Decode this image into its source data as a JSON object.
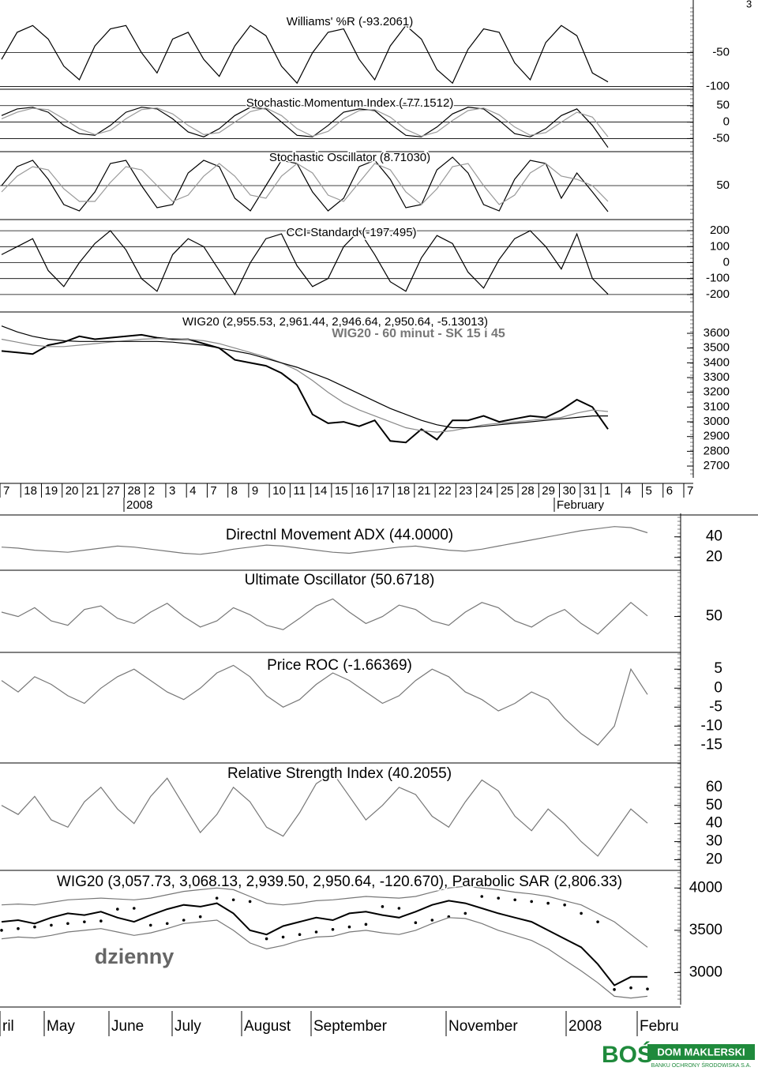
{
  "page_number": "3",
  "intraday_title": "WIG20 - 60 minut - SK 15 i 45",
  "daily_label": "dzienny",
  "logo": {
    "brand": "BOŚ",
    "name": "DOM MAKLERSKI",
    "subtitle": "BANKU OCHRONY ŚRODOWISKA S.A."
  },
  "intraday_axis": {
    "categories": [
      "7",
      "18",
      "19",
      "20",
      "21",
      "27",
      "28",
      "2",
      "3",
      "4",
      "7",
      "8",
      "9",
      "10",
      "11",
      "14",
      "15",
      "16",
      "17",
      "18",
      "21",
      "22",
      "23",
      "24",
      "25",
      "28",
      "29",
      "30",
      "31",
      "1",
      "4",
      "5",
      "6",
      "7"
    ],
    "year": "2008",
    "month": "February"
  },
  "daily_axis": {
    "categories": [
      "ril",
      "May",
      "June",
      "July",
      "August",
      "September",
      "November",
      "2008",
      "Febru"
    ]
  },
  "chart_data": [
    {
      "type": "line",
      "title": "Williams' %R (-93.2061)",
      "ylim": [
        -104,
        16
      ],
      "yticks": [
        -50,
        -100
      ],
      "grid": true,
      "series": [
        {
          "color": "#000",
          "values": [
            -60,
            -20,
            -10,
            -30,
            -70,
            -90,
            -40,
            -15,
            -10,
            -50,
            -80,
            -30,
            -20,
            -60,
            -85,
            -40,
            -10,
            -25,
            -70,
            -95,
            -50,
            -20,
            -15,
            -60,
            -90,
            -40,
            -10,
            -30,
            -75,
            -95,
            -45,
            -15,
            -20,
            -65,
            -90,
            -35,
            -10,
            -25,
            -80,
            -93.2061
          ]
        }
      ]
    },
    {
      "type": "line",
      "title": "Stochastic Momentum Index (-77.1512)",
      "ylim": [
        -85,
        95
      ],
      "yticks": [
        50,
        0,
        -50
      ],
      "grid": true,
      "series": [
        {
          "color": "#000",
          "values": [
            20,
            40,
            45,
            30,
            -10,
            -35,
            -40,
            -10,
            30,
            45,
            40,
            10,
            -30,
            -45,
            -20,
            20,
            45,
            40,
            0,
            -40,
            -45,
            -10,
            30,
            40,
            35,
            -5,
            -40,
            -45,
            -15,
            25,
            45,
            40,
            5,
            -35,
            -45,
            -20,
            20,
            40,
            -10,
            -77.1512
          ]
        },
        {
          "color": "#999",
          "values": [
            10,
            30,
            42,
            38,
            10,
            -20,
            -38,
            -25,
            10,
            38,
            43,
            25,
            -10,
            -38,
            -32,
            0,
            32,
            43,
            20,
            -20,
            -43,
            -28,
            10,
            35,
            38,
            15,
            -22,
            -43,
            -30,
            5,
            35,
            43,
            22,
            -15,
            -40,
            -32,
            0,
            30,
            15,
            -45
          ]
        }
      ]
    },
    {
      "type": "line",
      "title": "Stochastic Oscillator (8.71030)",
      "ylim": [
        0,
        100
      ],
      "yticks": [
        50
      ],
      "grid": true,
      "series": [
        {
          "color": "#000",
          "values": [
            50,
            80,
            90,
            60,
            20,
            10,
            40,
            85,
            90,
            50,
            15,
            20,
            70,
            90,
            80,
            30,
            10,
            50,
            90,
            85,
            40,
            10,
            30,
            80,
            90,
            60,
            15,
            20,
            75,
            95,
            70,
            20,
            10,
            60,
            90,
            85,
            30,
            70,
            40,
            8.7103
          ]
        },
        {
          "color": "#999",
          "values": [
            40,
            65,
            80,
            75,
            45,
            25,
            25,
            55,
            80,
            75,
            50,
            25,
            35,
            65,
            85,
            65,
            35,
            30,
            65,
            85,
            70,
            35,
            25,
            55,
            85,
            75,
            40,
            20,
            45,
            80,
            85,
            50,
            20,
            35,
            70,
            85,
            65,
            60,
            50,
            25
          ]
        }
      ]
    },
    {
      "type": "line",
      "title": "CCI-Standard (-197.495)",
      "ylim": [
        -260,
        250
      ],
      "yticks": [
        200,
        100,
        0,
        -100,
        -200
      ],
      "grid": true,
      "series": [
        {
          "color": "#000",
          "values": [
            50,
            100,
            150,
            -50,
            -150,
            0,
            120,
            200,
            80,
            -100,
            -180,
            50,
            150,
            100,
            -50,
            -200,
            0,
            150,
            180,
            -20,
            -150,
            -100,
            100,
            200,
            50,
            -120,
            -180,
            30,
            170,
            120,
            -60,
            -160,
            20,
            150,
            200,
            100,
            -40,
            180,
            -100,
            -197.495
          ]
        }
      ]
    },
    {
      "type": "line",
      "title": "WIG20 (2,955.53, 2,961.44, 2,946.64, 2,950.64, -5.13013)",
      "ylim": [
        2620,
        3718
      ],
      "yticks": [
        3600,
        3500,
        3400,
        3300,
        3200,
        3100,
        3000,
        2900,
        2800,
        2700
      ],
      "grid": false,
      "series": [
        {
          "color": "#000",
          "width": 2,
          "values": [
            3480,
            3470,
            3460,
            3520,
            3540,
            3580,
            3560,
            3570,
            3580,
            3590,
            3570,
            3560,
            3560,
            3530,
            3500,
            3420,
            3400,
            3380,
            3330,
            3250,
            3050,
            2990,
            3000,
            2970,
            3010,
            2870,
            2860,
            2950,
            2880,
            3010,
            3010,
            3040,
            3000,
            3020,
            3040,
            3030,
            3080,
            3150,
            3100,
            2950.64
          ]
        },
        {
          "color": "#888",
          "values": [
            3560,
            3540,
            3520,
            3510,
            3510,
            3520,
            3530,
            3540,
            3550,
            3560,
            3565,
            3565,
            3560,
            3550,
            3530,
            3500,
            3470,
            3440,
            3400,
            3350,
            3280,
            3200,
            3130,
            3080,
            3040,
            3000,
            2960,
            2940,
            2930,
            2940,
            2960,
            2980,
            2990,
            3000,
            3010,
            3020,
            3030,
            3060,
            3080,
            3070
          ]
        },
        {
          "color": "#000",
          "values": [
            3650,
            3610,
            3580,
            3560,
            3550,
            3545,
            3545,
            3545,
            3545,
            3545,
            3545,
            3540,
            3530,
            3520,
            3500,
            3480,
            3460,
            3430,
            3400,
            3370,
            3330,
            3290,
            3240,
            3190,
            3140,
            3090,
            3050,
            3010,
            2980,
            2960,
            2960,
            2970,
            2980,
            2990,
            3000,
            3010,
            3020,
            3030,
            3040,
            3040
          ]
        }
      ]
    },
    {
      "type": "line",
      "title": "Directnl Movement ADX (44.0000)",
      "ylim": [
        9,
        59
      ],
      "yticks": [
        40,
        20
      ],
      "grid": false,
      "series": [
        {
          "color": "#777",
          "values": [
            30,
            29,
            27,
            26,
            25,
            27,
            29,
            31,
            30,
            28,
            26,
            24,
            23,
            25,
            28,
            30,
            32,
            31,
            29,
            27,
            25,
            24,
            26,
            28,
            30,
            31,
            29,
            27,
            26,
            28,
            31,
            34,
            37,
            40,
            43,
            46,
            48,
            50,
            49,
            44
          ]
        }
      ]
    },
    {
      "type": "line",
      "title": "Ultimate Oscillator (50.6718)",
      "ylim": [
        10,
        100
      ],
      "yticks": [
        50
      ],
      "grid": false,
      "series": [
        {
          "color": "#777",
          "values": [
            55,
            50,
            60,
            45,
            40,
            58,
            62,
            48,
            42,
            55,
            65,
            50,
            38,
            45,
            60,
            52,
            40,
            35,
            48,
            62,
            70,
            55,
            42,
            50,
            63,
            58,
            45,
            40,
            55,
            66,
            60,
            45,
            38,
            50,
            58,
            42,
            30,
            48,
            66,
            50.6718
          ]
        }
      ]
    },
    {
      "type": "line",
      "title": "Price ROC (-1.66369)",
      "ylim": [
        -19.5,
        9
      ],
      "yticks": [
        5,
        0,
        -5,
        -10,
        -15
      ],
      "grid": false,
      "series": [
        {
          "color": "#777",
          "values": [
            2,
            -1,
            3,
            1,
            -2,
            -4,
            0,
            3,
            5,
            2,
            -1,
            -3,
            0,
            4,
            6,
            3,
            -2,
            -5,
            -3,
            1,
            4,
            2,
            -1,
            -4,
            -2,
            2,
            5,
            3,
            -1,
            -3,
            -6,
            -4,
            -1,
            -3,
            -8,
            -12,
            -15,
            -10,
            5,
            -1.66369
          ]
        }
      ]
    },
    {
      "type": "line",
      "title": "Relative Strength Index (40.2055)",
      "ylim": [
        15,
        73
      ],
      "yticks": [
        60,
        50,
        40,
        30,
        20
      ],
      "grid": false,
      "series": [
        {
          "color": "#777",
          "values": [
            50,
            45,
            55,
            42,
            38,
            52,
            60,
            48,
            40,
            55,
            65,
            50,
            35,
            45,
            60,
            52,
            38,
            33,
            46,
            62,
            68,
            55,
            42,
            50,
            60,
            56,
            44,
            38,
            52,
            64,
            58,
            44,
            36,
            48,
            40,
            30,
            22,
            35,
            48,
            40.2055
          ]
        }
      ]
    },
    {
      "type": "line",
      "title": "WIG20 (3,057.73, 3,068.13, 2,939.50, 2,950.64, -120.670), Parabolic SAR (2,806.33)",
      "ylim": [
        2640,
        4180
      ],
      "yticks": [
        4000,
        3500,
        3000
      ],
      "grid": false,
      "series": [
        {
          "color": "#000",
          "width": 2,
          "values": [
            3600,
            3620,
            3580,
            3650,
            3700,
            3680,
            3720,
            3650,
            3600,
            3680,
            3750,
            3800,
            3780,
            3820,
            3700,
            3500,
            3450,
            3550,
            3600,
            3650,
            3620,
            3700,
            3720,
            3680,
            3650,
            3720,
            3800,
            3850,
            3820,
            3760,
            3700,
            3650,
            3600,
            3500,
            3400,
            3300,
            3100,
            2850,
            2950,
            2950.64
          ]
        },
        {
          "color": "#000",
          "style": "dots",
          "values": [
            3500,
            3520,
            3540,
            3560,
            3580,
            3600,
            3610,
            3750,
            3760,
            3560,
            3580,
            3620,
            3660,
            3880,
            3860,
            3840,
            3400,
            3420,
            3450,
            3480,
            3510,
            3540,
            3570,
            3780,
            3760,
            3590,
            3620,
            3660,
            3700,
            3900,
            3880,
            3860,
            3840,
            3820,
            3800,
            3700,
            3600,
            2800,
            2820,
            2806.33
          ]
        },
        {
          "color": "#777",
          "values": [
            3800,
            3810,
            3800,
            3830,
            3860,
            3870,
            3880,
            3870,
            3860,
            3880,
            3920,
            3960,
            3980,
            4000,
            3980,
            3900,
            3820,
            3800,
            3820,
            3850,
            3860,
            3880,
            3900,
            3890,
            3880,
            3900,
            3950,
            4000,
            4020,
            4000,
            3980,
            3950,
            3930,
            3900,
            3850,
            3800,
            3700,
            3600,
            3450,
            3300
          ]
        },
        {
          "color": "#777",
          "values": [
            3400,
            3420,
            3410,
            3440,
            3480,
            3500,
            3520,
            3480,
            3440,
            3470,
            3520,
            3580,
            3600,
            3620,
            3500,
            3350,
            3280,
            3320,
            3380,
            3420,
            3430,
            3480,
            3500,
            3470,
            3450,
            3500,
            3580,
            3650,
            3640,
            3580,
            3500,
            3440,
            3380,
            3280,
            3150,
            3020,
            2880,
            2720,
            2700,
            2720
          ]
        }
      ]
    }
  ]
}
